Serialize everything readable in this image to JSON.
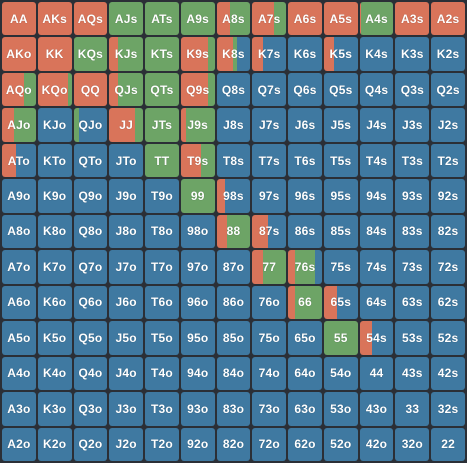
{
  "colors": {
    "raise": "#d9745a",
    "call": "#6da466",
    "fold": "#3f79a1",
    "background": "#2b2f36"
  },
  "ranks": [
    "A",
    "K",
    "Q",
    "J",
    "T",
    "9",
    "8",
    "7",
    "6",
    "5",
    "4",
    "3",
    "2"
  ],
  "grid": {
    "rows": [
      [
        "AA",
        "AKs",
        "AQs",
        "AJs",
        "ATs",
        "A9s",
        "A8s",
        "A7s",
        "A6s",
        "A5s",
        "A4s",
        "A3s",
        "A2s"
      ],
      [
        "AKo",
        "KK",
        "KQs",
        "KJs",
        "KTs",
        "K9s",
        "K8s",
        "K7s",
        "K6s",
        "K5s",
        "K4s",
        "K3s",
        "K2s"
      ],
      [
        "AQo",
        "KQo",
        "QQ",
        "QJs",
        "QTs",
        "Q9s",
        "Q8s",
        "Q7s",
        "Q6s",
        "Q5s",
        "Q4s",
        "Q3s",
        "Q2s"
      ],
      [
        "AJo",
        "KJo",
        "QJo",
        "JJ",
        "JTs",
        "J9s",
        "J8s",
        "J7s",
        "J6s",
        "J5s",
        "J4s",
        "J3s",
        "J2s"
      ],
      [
        "ATo",
        "KTo",
        "QTo",
        "JTo",
        "TT",
        "T9s",
        "T8s",
        "T7s",
        "T6s",
        "T5s",
        "T4s",
        "T3s",
        "T2s"
      ],
      [
        "A9o",
        "K9o",
        "Q9o",
        "J9o",
        "T9o",
        "99",
        "98s",
        "97s",
        "96s",
        "95s",
        "94s",
        "93s",
        "92s"
      ],
      [
        "A8o",
        "K8o",
        "Q8o",
        "J8o",
        "T8o",
        "98o",
        "88",
        "87s",
        "86s",
        "85s",
        "84s",
        "83s",
        "82s"
      ],
      [
        "A7o",
        "K7o",
        "Q7o",
        "J7o",
        "T7o",
        "97o",
        "87o",
        "77",
        "76s",
        "75s",
        "74s",
        "73s",
        "72s"
      ],
      [
        "A6o",
        "K6o",
        "Q6o",
        "J6o",
        "T6o",
        "96o",
        "86o",
        "76o",
        "66",
        "65s",
        "64s",
        "63s",
        "62s"
      ],
      [
        "A5o",
        "K5o",
        "Q5o",
        "J5o",
        "T5o",
        "95o",
        "85o",
        "75o",
        "65o",
        "55",
        "54s",
        "53s",
        "52s"
      ],
      [
        "A4o",
        "K4o",
        "Q4o",
        "J4o",
        "T4o",
        "94o",
        "84o",
        "74o",
        "64o",
        "54o",
        "44",
        "43s",
        "42s"
      ],
      [
        "A3o",
        "K3o",
        "Q3o",
        "J3o",
        "T3o",
        "93o",
        "83o",
        "73o",
        "63o",
        "53o",
        "43o",
        "33",
        "32s"
      ],
      [
        "A2o",
        "K2o",
        "Q2o",
        "J2o",
        "T2o",
        "92o",
        "82o",
        "72o",
        "62o",
        "52o",
        "42o",
        "32o",
        "22"
      ]
    ],
    "strategy": {
      "AA": {
        "raise": 1,
        "call": 0,
        "fold": 0
      },
      "AKs": {
        "raise": 1,
        "call": 0,
        "fold": 0
      },
      "AQs": {
        "raise": 1,
        "call": 0,
        "fold": 0
      },
      "AJs": {
        "raise": 0,
        "call": 1,
        "fold": 0
      },
      "ATs": {
        "raise": 0,
        "call": 1,
        "fold": 0
      },
      "A9s": {
        "raise": 0,
        "call": 1,
        "fold": 0
      },
      "A8s": {
        "raise": 0.4,
        "call": 0.6,
        "fold": 0
      },
      "A7s": {
        "raise": 0.65,
        "call": 0.35,
        "fold": 0
      },
      "A6s": {
        "raise": 1,
        "call": 0,
        "fold": 0
      },
      "A5s": {
        "raise": 1,
        "call": 0,
        "fold": 0
      },
      "A4s": {
        "raise": 0.05,
        "call": 0.95,
        "fold": 0
      },
      "A3s": {
        "raise": 1,
        "call": 0,
        "fold": 0
      },
      "A2s": {
        "raise": 1,
        "call": 0,
        "fold": 0
      },
      "AKo": {
        "raise": 1,
        "call": 0,
        "fold": 0
      },
      "KK": {
        "raise": 1,
        "call": 0,
        "fold": 0
      },
      "KQs": {
        "raise": 0,
        "call": 1,
        "fold": 0
      },
      "KJs": {
        "raise": 0.25,
        "call": 0.75,
        "fold": 0
      },
      "KTs": {
        "raise": 0,
        "call": 1,
        "fold": 0
      },
      "K9s": {
        "raise": 0.8,
        "call": 0.2,
        "fold": 0
      },
      "K8s": {
        "raise": 0.5,
        "call": 0.1,
        "fold": 0.4
      },
      "K7s": {
        "raise": 0.3,
        "call": 0,
        "fold": 0.7
      },
      "K6s": {
        "raise": 0,
        "call": 0,
        "fold": 1
      },
      "K5s": {
        "raise": 0.3,
        "call": 0,
        "fold": 0.7
      },
      "K4s": {
        "raise": 0,
        "call": 0,
        "fold": 1
      },
      "K3s": {
        "raise": 0,
        "call": 0,
        "fold": 1
      },
      "K2s": {
        "raise": 0,
        "call": 0,
        "fold": 1
      },
      "AQo": {
        "raise": 0.65,
        "call": 0.35,
        "fold": 0
      },
      "KQo": {
        "raise": 0.9,
        "call": 0.1,
        "fold": 0
      },
      "QQ": {
        "raise": 1,
        "call": 0,
        "fold": 0
      },
      "QJs": {
        "raise": 0.25,
        "call": 0.75,
        "fold": 0
      },
      "QTs": {
        "raise": 0,
        "call": 1,
        "fold": 0
      },
      "Q9s": {
        "raise": 0.8,
        "call": 0.2,
        "fold": 0
      },
      "Q8s": {
        "raise": 0,
        "call": 0,
        "fold": 1
      },
      "Q7s": {
        "raise": 0,
        "call": 0,
        "fold": 1
      },
      "Q6s": {
        "raise": 0,
        "call": 0,
        "fold": 1
      },
      "Q5s": {
        "raise": 0,
        "call": 0,
        "fold": 1
      },
      "Q4s": {
        "raise": 0,
        "call": 0,
        "fold": 1
      },
      "Q3s": {
        "raise": 0,
        "call": 0,
        "fold": 1
      },
      "Q2s": {
        "raise": 0,
        "call": 0,
        "fold": 1
      },
      "AJo": {
        "raise": 0.35,
        "call": 0.65,
        "fold": 0
      },
      "KJo": {
        "raise": 0,
        "call": 0,
        "fold": 1
      },
      "QJo": {
        "raise": 0,
        "call": 0.15,
        "fold": 0.85
      },
      "JJ": {
        "raise": 0.75,
        "call": 0.25,
        "fold": 0
      },
      "JTs": {
        "raise": 0,
        "call": 1,
        "fold": 0
      },
      "J9s": {
        "raise": 0.15,
        "call": 0.85,
        "fold": 0
      },
      "J8s": {
        "raise": 0,
        "call": 0,
        "fold": 1
      },
      "J7s": {
        "raise": 0,
        "call": 0,
        "fold": 1
      },
      "J6s": {
        "raise": 0,
        "call": 0,
        "fold": 1
      },
      "J5s": {
        "raise": 0,
        "call": 0,
        "fold": 1
      },
      "J4s": {
        "raise": 0,
        "call": 0,
        "fold": 1
      },
      "J3s": {
        "raise": 0,
        "call": 0,
        "fold": 1
      },
      "J2s": {
        "raise": 0,
        "call": 0,
        "fold": 1
      },
      "ATo": {
        "raise": 0.4,
        "call": 0,
        "fold": 0.6
      },
      "KTo": {
        "raise": 0,
        "call": 0,
        "fold": 1
      },
      "QTo": {
        "raise": 0,
        "call": 0,
        "fold": 1
      },
      "JTo": {
        "raise": 0,
        "call": 0,
        "fold": 1
      },
      "TT": {
        "raise": 0,
        "call": 1,
        "fold": 0
      },
      "T9s": {
        "raise": 0.6,
        "call": 0.4,
        "fold": 0
      },
      "T8s": {
        "raise": 0,
        "call": 0,
        "fold": 1
      },
      "T7s": {
        "raise": 0,
        "call": 0,
        "fold": 1
      },
      "T6s": {
        "raise": 0,
        "call": 0,
        "fold": 1
      },
      "T5s": {
        "raise": 0,
        "call": 0,
        "fold": 1
      },
      "T4s": {
        "raise": 0,
        "call": 0,
        "fold": 1
      },
      "T3s": {
        "raise": 0,
        "call": 0,
        "fold": 1
      },
      "T2s": {
        "raise": 0,
        "call": 0,
        "fold": 1
      },
      "99": {
        "raise": 0,
        "call": 1,
        "fold": 0
      },
      "98s": {
        "raise": 0.25,
        "call": 0,
        "fold": 0.75
      },
      "88": {
        "raise": 0.3,
        "call": 0.7,
        "fold": 0
      },
      "87s": {
        "raise": 0.45,
        "call": 0,
        "fold": 0.55
      },
      "77": {
        "raise": 0.3,
        "call": 0.7,
        "fold": 0
      },
      "76s": {
        "raise": 0.2,
        "call": 0.6,
        "fold": 0.2
      },
      "66": {
        "raise": 0.2,
        "call": 0.8,
        "fold": 0
      },
      "65s": {
        "raise": 0.4,
        "call": 0,
        "fold": 0.6
      },
      "55": {
        "raise": 0,
        "call": 1,
        "fold": 0
      },
      "54s": {
        "raise": 0.35,
        "call": 0,
        "fold": 0.65
      },
      "44": {
        "raise": 0,
        "call": 0,
        "fold": 1
      },
      "33": {
        "raise": 0,
        "call": 0,
        "fold": 1
      },
      "22": {
        "raise": 0,
        "call": 0,
        "fold": 1
      }
    }
  }
}
